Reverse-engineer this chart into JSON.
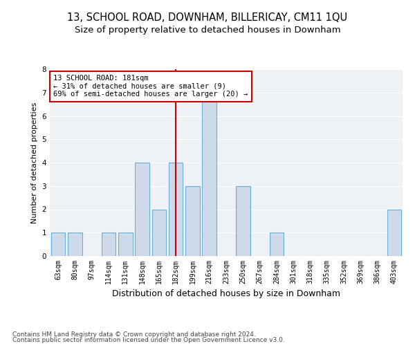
{
  "title": "13, SCHOOL ROAD, DOWNHAM, BILLERICAY, CM11 1QU",
  "subtitle": "Size of property relative to detached houses in Downham",
  "xlabel": "Distribution of detached houses by size in Downham",
  "ylabel": "Number of detached properties",
  "categories": [
    "63sqm",
    "80sqm",
    "97sqm",
    "114sqm",
    "131sqm",
    "148sqm",
    "165sqm",
    "182sqm",
    "199sqm",
    "216sqm",
    "233sqm",
    "250sqm",
    "267sqm",
    "284sqm",
    "301sqm",
    "318sqm",
    "335sqm",
    "352sqm",
    "369sqm",
    "386sqm",
    "403sqm"
  ],
  "values": [
    1,
    1,
    0,
    1,
    1,
    4,
    2,
    4,
    3,
    7,
    0,
    3,
    0,
    1,
    0,
    0,
    0,
    0,
    0,
    0,
    2
  ],
  "bar_color": "#ccdaea",
  "bar_edge_color": "#6aaed6",
  "subject_line_x": "182sqm",
  "subject_line_color": "#cc0000",
  "annotation_text": "13 SCHOOL ROAD: 181sqm\n← 31% of detached houses are smaller (9)\n69% of semi-detached houses are larger (20) →",
  "annotation_box_color": "#ffffff",
  "annotation_box_edge": "#cc0000",
  "ylim": [
    0,
    8
  ],
  "yticks": [
    0,
    1,
    2,
    3,
    4,
    5,
    6,
    7,
    8
  ],
  "footer1": "Contains HM Land Registry data © Crown copyright and database right 2024.",
  "footer2": "Contains public sector information licensed under the Open Government Licence v3.0.",
  "bg_color": "#ffffff",
  "plot_bg_color": "#eef2f7",
  "grid_color": "#ffffff",
  "title_fontsize": 10.5,
  "subtitle_fontsize": 9.5,
  "xlabel_fontsize": 9,
  "ylabel_fontsize": 8,
  "tick_fontsize": 7,
  "footer_fontsize": 6.5,
  "annotation_fontsize": 7.5
}
